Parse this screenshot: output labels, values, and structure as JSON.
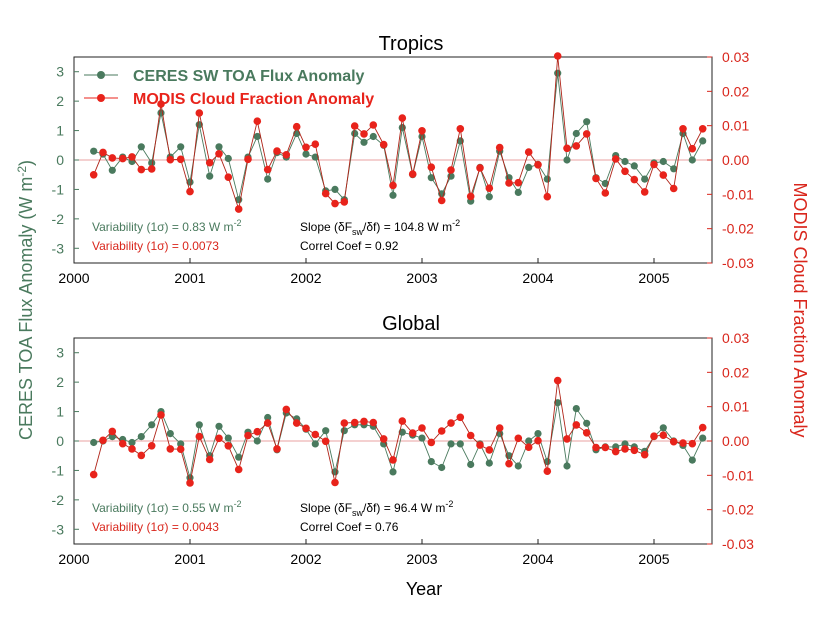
{
  "colors": {
    "ceres": "#4a7a5e",
    "modis": "#e8231b",
    "modis_dark": "#b02418",
    "axis_left": "#4a7a5e",
    "axis_right": "#d9261c",
    "zero_line": "#e8a0a0"
  },
  "y_label_left_prefix": "CERES TOA Flux Anomaly (W m",
  "y_label_left_sup": "-2",
  "y_label_left_suffix": ")",
  "y_label_right": "MODIS Cloud Fraction Anomaly",
  "x_label": "Year",
  "x_ticks": [
    "2000",
    "2001",
    "2002",
    "2003",
    "2004",
    "2005"
  ],
  "y_ticks_left": [
    "3",
    "2",
    "1",
    "0",
    "-1",
    "-2",
    "-3"
  ],
  "y_ticks_right": [
    "0.03",
    "0.02",
    "0.01",
    "0.00",
    "-0.01",
    "-0.02",
    "-0.03"
  ],
  "legend": {
    "ceres": "CERES SW TOA Flux Anomaly",
    "modis": "MODIS Cloud Fraction Anomaly"
  },
  "panels": [
    {
      "title": "Tropics",
      "var_ceres_prefix": "Variability (1σ) = 0.83 W m",
      "var_ceres_sup": "-2",
      "var_modis": "Variability (1σ) = 0.0073",
      "slope_a": "Slope (δF",
      "slope_sub": "sw",
      "slope_b": "/δf)  = 104.8 W m",
      "slope_sup": "-2",
      "correl": "Correl Coef    = 0.92"
    },
    {
      "title": "Global",
      "var_ceres_prefix": "Variability (1σ) = 0.55 W m",
      "var_ceres_sup": "-2",
      "var_modis": "Variability (1σ) = 0.0043",
      "slope_a": "Slope (δF",
      "slope_sub": "sw",
      "slope_b": "/δf)  = 96.4 W m",
      "slope_sup": "-2",
      "correl": "Correl Coef    = 0.76"
    }
  ],
  "chart_data": [
    {
      "type": "line",
      "title": "Tropics",
      "xlim": [
        2000,
        2005.5
      ],
      "ylim_left": [
        -3.5,
        3.5
      ],
      "ylim_right": [
        -0.03,
        0.03
      ],
      "xlabel": "Year",
      "ylabel_left": "CERES TOA Flux Anomaly (W m-2)",
      "ylabel_right": "MODIS Cloud Fraction Anomaly",
      "x": [
        2000.17,
        2000.25,
        2000.33,
        2000.42,
        2000.5,
        2000.58,
        2000.67,
        2000.75,
        2000.83,
        2000.92,
        2001.0,
        2001.08,
        2001.17,
        2001.25,
        2001.33,
        2001.42,
        2001.5,
        2001.58,
        2001.67,
        2001.75,
        2001.83,
        2001.92,
        2002.0,
        2002.08,
        2002.17,
        2002.25,
        2002.33,
        2002.42,
        2002.5,
        2002.58,
        2002.67,
        2002.75,
        2002.83,
        2002.92,
        2003.0,
        2003.08,
        2003.17,
        2003.25,
        2003.33,
        2003.42,
        2003.5,
        2003.58,
        2003.67,
        2003.75,
        2003.83,
        2003.92,
        2004.0,
        2004.08,
        2004.17,
        2004.25,
        2004.33,
        2004.42,
        2004.5,
        2004.58,
        2004.67,
        2004.75,
        2004.83,
        2004.92,
        2005.0,
        2005.08,
        2005.17,
        2005.25,
        2005.33,
        2005.42
      ],
      "series": [
        {
          "name": "CERES SW TOA Flux Anomaly",
          "axis": "left",
          "values": [
            0.3,
            0.2,
            -0.35,
            0.1,
            -0.05,
            0.45,
            -0.1,
            1.6,
            0.1,
            0.45,
            -0.75,
            1.2,
            -0.55,
            0.45,
            0.05,
            -1.35,
            0.1,
            0.8,
            -0.65,
            0.25,
            0.1,
            0.9,
            0.2,
            0.1,
            -1.05,
            -1.0,
            -1.35,
            0.9,
            0.6,
            0.8,
            0.5,
            -1.2,
            1.1,
            -0.5,
            0.8,
            -0.6,
            -1.15,
            -0.55,
            0.65,
            -1.4,
            -0.25,
            -1.25,
            0.3,
            -0.6,
            -1.1,
            -0.25,
            -0.15,
            -0.65,
            2.95,
            0.0,
            0.9,
            1.3,
            -0.6,
            -0.8,
            0.15,
            -0.05,
            -0.2,
            -0.65,
            -0.1,
            -0.05,
            -0.3,
            0.9,
            0.0,
            0.65
          ]
        },
        {
          "name": "MODIS Cloud Fraction Anomaly",
          "axis": "right",
          "values": [
            -0.0043,
            0.0022,
            0.0006,
            0.0004,
            0.0009,
            -0.0028,
            -0.0026,
            0.0163,
            0.0001,
            0.0002,
            -0.0092,
            0.0137,
            -0.0008,
            0.0018,
            -0.005,
            -0.0143,
            0.0002,
            0.0113,
            -0.0028,
            0.0026,
            0.0015,
            0.0097,
            0.0037,
            0.0046,
            -0.0098,
            -0.0127,
            -0.0122,
            0.0099,
            0.0076,
            0.0102,
            0.0045,
            -0.0074,
            0.0122,
            -0.0041,
            0.0085,
            -0.0021,
            -0.0118,
            -0.0029,
            0.0091,
            -0.0106,
            -0.0023,
            -0.0082,
            0.0036,
            -0.0067,
            -0.0066,
            0.0023,
            -0.0014,
            -0.0107,
            0.0303,
            0.0034,
            0.0041,
            0.0076,
            -0.0054,
            -0.0096,
            0.0003,
            -0.0033,
            -0.0057,
            -0.0093,
            -0.0013,
            -0.0044,
            -0.0083,
            0.0091,
            0.0033,
            0.0091
          ]
        }
      ]
    },
    {
      "type": "line",
      "title": "Global",
      "xlim": [
        2000,
        2005.5
      ],
      "ylim_left": [
        -3.5,
        3.5
      ],
      "ylim_right": [
        -0.03,
        0.03
      ],
      "xlabel": "Year",
      "ylabel_left": "CERES TOA Flux Anomaly (W m-2)",
      "ylabel_right": "MODIS Cloud Fraction Anomaly",
      "x": [
        2000.17,
        2000.25,
        2000.33,
        2000.42,
        2000.5,
        2000.58,
        2000.67,
        2000.75,
        2000.83,
        2000.92,
        2001.0,
        2001.08,
        2001.17,
        2001.25,
        2001.33,
        2001.42,
        2001.5,
        2001.58,
        2001.67,
        2001.75,
        2001.83,
        2001.92,
        2002.0,
        2002.08,
        2002.17,
        2002.25,
        2002.33,
        2002.42,
        2002.5,
        2002.58,
        2002.67,
        2002.75,
        2002.83,
        2002.92,
        2003.0,
        2003.08,
        2003.17,
        2003.25,
        2003.33,
        2003.42,
        2003.5,
        2003.58,
        2003.67,
        2003.75,
        2003.83,
        2003.92,
        2004.0,
        2004.08,
        2004.17,
        2004.25,
        2004.33,
        2004.42,
        2004.5,
        2004.58,
        2004.67,
        2004.75,
        2004.83,
        2004.92,
        2005.0,
        2005.08,
        2005.17,
        2005.25,
        2005.33,
        2005.42
      ],
      "series": [
        {
          "name": "CERES SW TOA Flux Anomaly",
          "axis": "left",
          "values": [
            -0.05,
            0.0,
            0.15,
            0.05,
            -0.05,
            0.15,
            0.55,
            1.0,
            0.25,
            -0.1,
            -1.25,
            0.55,
            -0.5,
            0.5,
            0.1,
            -0.55,
            0.3,
            0.0,
            0.8,
            -0.3,
            0.95,
            0.75,
            0.4,
            -0.1,
            0.35,
            -1.05,
            0.35,
            0.55,
            0.55,
            0.5,
            -0.1,
            -1.05,
            0.3,
            0.2,
            0.1,
            -0.7,
            -0.9,
            -0.1,
            -0.1,
            -0.8,
            -0.1,
            -0.75,
            0.25,
            -0.5,
            -0.85,
            0.0,
            0.25,
            -0.7,
            1.3,
            -0.85,
            1.1,
            0.6,
            -0.3,
            -0.2,
            -0.2,
            -0.1,
            -0.2,
            -0.35,
            0.15,
            0.45,
            0.0,
            -0.15,
            -0.65,
            0.1
          ]
        },
        {
          "name": "MODIS Cloud Fraction Anomaly",
          "axis": "right",
          "values": [
            -0.0098,
            0.0002,
            0.0028,
            -0.0008,
            -0.0023,
            -0.0042,
            -0.0014,
            0.0076,
            -0.0023,
            -0.0024,
            -0.0122,
            0.0013,
            -0.0054,
            0.0008,
            -0.0014,
            -0.0083,
            0.0016,
            0.0027,
            0.0052,
            -0.0023,
            0.0092,
            0.0052,
            0.0037,
            0.0019,
            -0.0001,
            -0.0121,
            0.0052,
            0.0054,
            0.0057,
            0.0054,
            0.0006,
            -0.0055,
            0.0058,
            0.0023,
            0.0038,
            -0.0004,
            0.0029,
            0.0052,
            0.0069,
            0.0016,
            -0.0012,
            -0.0026,
            0.0038,
            -0.0066,
            0.0008,
            -0.0018,
            0.0001,
            -0.0088,
            0.0176,
            0.0006,
            0.0047,
            0.0024,
            -0.0019,
            -0.0019,
            -0.0031,
            -0.0023,
            -0.0027,
            -0.004,
            0.0014,
            0.0017,
            -0.0002,
            -0.0006,
            -0.0008,
            0.0039
          ]
        }
      ]
    }
  ]
}
